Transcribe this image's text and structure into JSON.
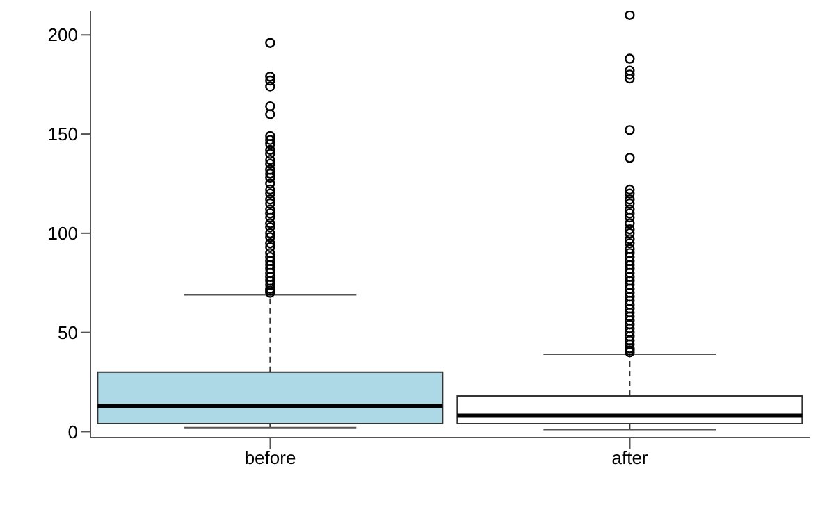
{
  "chart_data": {
    "type": "box",
    "categories": [
      "before",
      "after"
    ],
    "colors": [
      "#add8e6",
      "#ffffff"
    ],
    "marker": "circle",
    "ylim": [
      -3,
      212
    ],
    "yticks": [
      0,
      50,
      100,
      150,
      200
    ],
    "boxes": [
      {
        "low": 2,
        "q1": 4,
        "median": 13,
        "q3": 30,
        "high": 69,
        "outliers": [
          196,
          179,
          177,
          174,
          164,
          160,
          149,
          147,
          145,
          142,
          140,
          137,
          135,
          132,
          130,
          128,
          125,
          122,
          120,
          117,
          115,
          112,
          110,
          108,
          105,
          103,
          100,
          98,
          95,
          93,
          90,
          88,
          86,
          84,
          82,
          80,
          78,
          76,
          74,
          72,
          71,
          70
        ]
      },
      {
        "low": 1,
        "q1": 4,
        "median": 8,
        "q3": 18,
        "high": 39,
        "outliers": [
          210,
          188,
          182,
          180,
          178,
          152,
          138,
          122,
          120,
          117,
          115,
          112,
          110,
          108,
          105,
          102,
          100,
          97,
          95,
          92,
          90,
          88,
          86,
          84,
          82,
          80,
          78,
          76,
          74,
          72,
          70,
          68,
          66,
          64,
          62,
          60,
          58,
          56,
          54,
          52,
          50,
          48,
          46,
          44,
          42,
          41,
          40
        ]
      }
    ]
  }
}
